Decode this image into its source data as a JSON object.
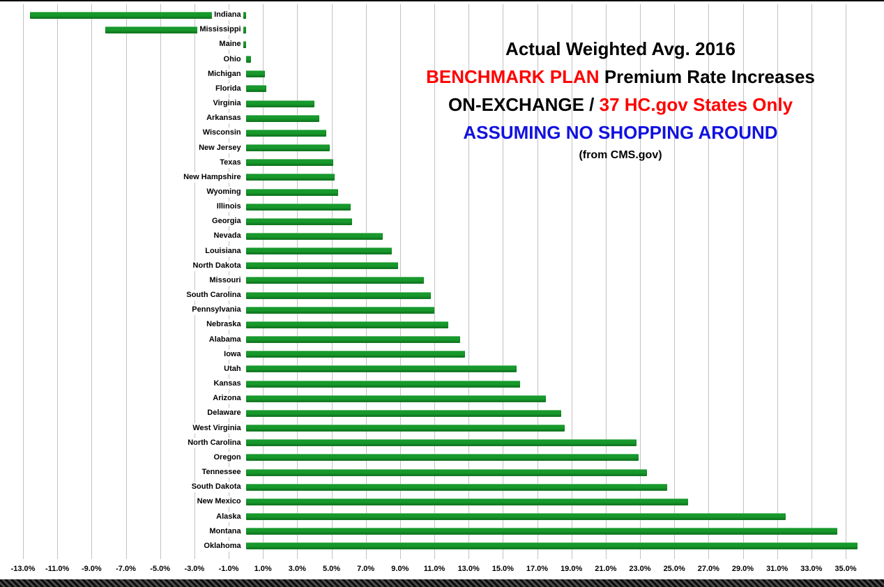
{
  "chart_data": {
    "type": "bar",
    "orientation": "horizontal",
    "title_lines": [
      {
        "segments": [
          {
            "text": "Actual Weighted Avg. 2016",
            "color": "#000000"
          }
        ]
      },
      {
        "segments": [
          {
            "text": "BENCHMARK PLAN ",
            "color": "#FF0000"
          },
          {
            "text": "Premium Rate Increases",
            "color": "#000000"
          }
        ]
      },
      {
        "segments": [
          {
            "text": "ON-EXCHANGE / ",
            "color": "#000000"
          },
          {
            "text": "37 HC.gov States Only",
            "color": "#FF0000"
          }
        ]
      },
      {
        "segments": [
          {
            "text": "ASSUMING NO SHOPPING AROUND",
            "color": "#1111E0"
          }
        ]
      }
    ],
    "source_note": "(from CMS.gov)",
    "categories": [
      "Indiana",
      "Mississippi",
      "Maine",
      "Ohio",
      "Michigan",
      "Florida",
      "Virginia",
      "Arkansas",
      "Wisconsin",
      "New Jersey",
      "Texas",
      "New Hampshire",
      "Wyoming",
      "Illinois",
      "Georgia",
      "Nevada",
      "Louisiana",
      "North Dakota",
      "Missouri",
      "South Carolina",
      "Pennsylvania",
      "Nebraska",
      "Alabama",
      "Iowa",
      "Utah",
      "Kansas",
      "Arizona",
      "Delaware",
      "West Virginia",
      "North Carolina",
      "Oregon",
      "Tennessee",
      "South Dakota",
      "New Mexico",
      "Alaska",
      "Montana",
      "Oklahoma"
    ],
    "values": [
      -12.6,
      -8.2,
      -0.5,
      0.3,
      1.1,
      1.2,
      4.0,
      4.3,
      4.7,
      4.9,
      5.1,
      5.2,
      5.4,
      6.1,
      6.2,
      8.0,
      8.5,
      8.9,
      10.4,
      10.8,
      11.0,
      11.8,
      12.5,
      12.8,
      15.8,
      16.0,
      17.5,
      18.4,
      18.6,
      22.8,
      22.9,
      23.4,
      24.6,
      25.8,
      31.5,
      34.5,
      35.7
    ],
    "value_unit": "%",
    "xlabel": "",
    "ylabel": "",
    "xlim": [
      -13.5,
      36.5
    ],
    "grid": true,
    "legend": "none",
    "x_tick_values": [
      -13,
      -11,
      -9,
      -7,
      -5,
      -3,
      -1,
      1,
      3,
      5,
      7,
      9,
      11,
      13,
      15,
      17,
      19,
      21,
      23,
      25,
      27,
      29,
      31,
      33,
      35
    ],
    "x_tick_labels": [
      "-13.0%",
      "-11.0%",
      "-9.0%",
      "-7.0%",
      "-5.0%",
      "-3.0%",
      "-1.0%",
      "1.0%",
      "3.0%",
      "5.0%",
      "7.0%",
      "9.0%",
      "11.0%",
      "13.0%",
      "15.0%",
      "17.0%",
      "19.0%",
      "21.0%",
      "23.0%",
      "25.0%",
      "27.0%",
      "29.0%",
      "31.0%",
      "33.0%",
      "35.0%"
    ],
    "bar_color": "#17992C",
    "colors": {
      "red": "#FF0000",
      "blue": "#1111E0",
      "black": "#000000",
      "gridline": "#C2C2C2",
      "background": "#FFFFFF"
    }
  }
}
